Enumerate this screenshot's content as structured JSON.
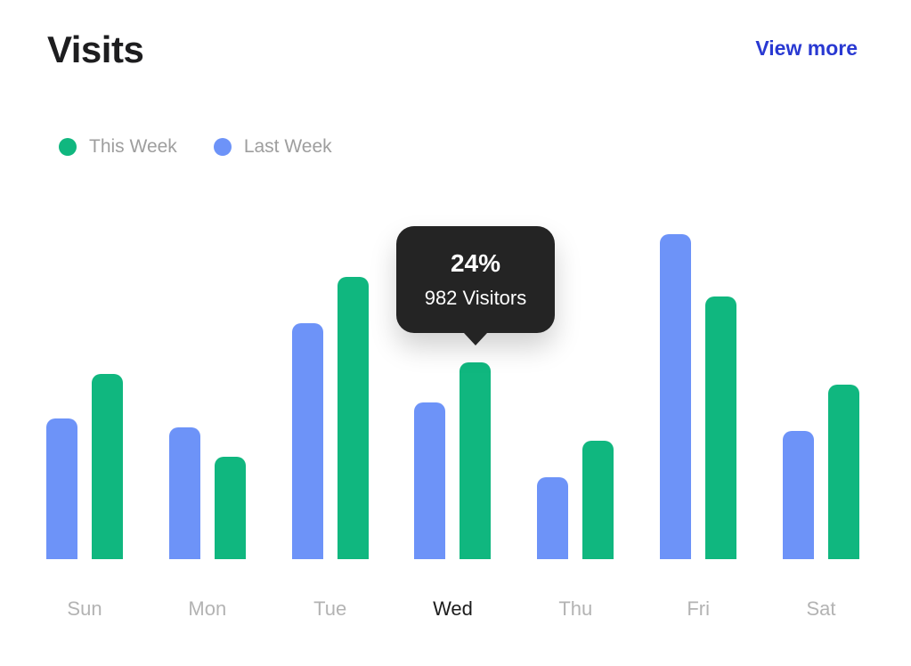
{
  "header": {
    "title": "Visits",
    "view_more_label": "View more"
  },
  "legend": [
    {
      "label": "This Week",
      "color": "#10b77f"
    },
    {
      "label": "Last Week",
      "color": "#6d93f8"
    }
  ],
  "tooltip": {
    "percent": "24%",
    "visitors": "982 Visitors"
  },
  "chart_data": {
    "type": "bar",
    "title": "Visits",
    "categories": [
      "Sun",
      "Mon",
      "Tue",
      "Wed",
      "Thu",
      "Fri",
      "Sat"
    ],
    "highlighted_category": "Wed",
    "series": [
      {
        "name": "Last Week",
        "color": "#6d93f8",
        "values": [
          17.2,
          16.1,
          28.8,
          19.1,
          10.0,
          39.7,
          15.7
        ]
      },
      {
        "name": "This Week",
        "color": "#10b77f",
        "values": [
          22.6,
          12.5,
          34.5,
          24.0,
          14.5,
          32.1,
          21.3
        ]
      }
    ],
    "unit": "percent",
    "ylim": [
      0,
      41.3
    ],
    "grid": false,
    "legend_position": "top-left",
    "annotation": {
      "category": "Wed",
      "series": "This Week",
      "percent_label": "24%",
      "visitors_label": "982 Visitors",
      "percent": 24,
      "visitors": 982
    }
  },
  "colors": {
    "this_week": "#10b77f",
    "last_week": "#6d93f8",
    "link": "#2939d2",
    "tooltip_bg": "#242424",
    "title": "#1d1d1f",
    "muted_text": "#9e9e9e",
    "axis_text": "#b3b3b3",
    "axis_text_active": "#1c1c1c",
    "background": "#ffffff"
  }
}
